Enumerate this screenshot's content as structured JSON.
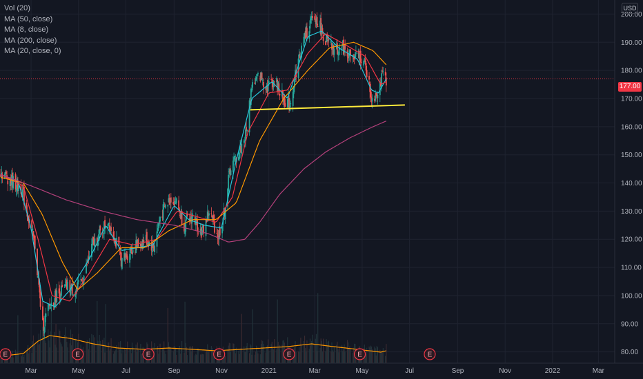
{
  "legend": {
    "items": [
      "Vol (20)",
      "MA (50, close)",
      "MA (8, close)",
      "MA (200, close)",
      "MA (20, close, 0)"
    ]
  },
  "currency": "USD",
  "last_price": "177.00",
  "colors": {
    "background": "#131722",
    "grid": "#1f2330",
    "axis_text": "#b2b5be",
    "up_candle": "#26a69a",
    "down_candle": "#ef5350",
    "ma8": "#26c6da",
    "ma20": "#f23645",
    "ma50": "#ff9800",
    "ma200": "#b3407a",
    "volume_ma": "#ff9800",
    "trendline": "#ffeb3b",
    "earnings_marker": "#f23645"
  },
  "chart_data": {
    "type": "candlestick",
    "x_axis": {
      "tick_labels": [
        "Mar",
        "May",
        "Jul",
        "Sep",
        "Nov",
        "2021",
        "Mar",
        "May",
        "Jul",
        "Sep",
        "Nov",
        "2022",
        "Mar"
      ],
      "tick_dates": [
        "2020-03-01",
        "2020-05-01",
        "2020-07-01",
        "2020-09-01",
        "2020-11-01",
        "2021-01-01",
        "2021-03-01",
        "2021-05-01",
        "2021-07-01",
        "2021-09-01",
        "2021-11-01",
        "2022-01-01",
        "2022-03-01"
      ]
    },
    "y_axis": {
      "tick_labels": [
        "80.00",
        "90.00",
        "100.00",
        "110.00",
        "120.00",
        "130.00",
        "140.00",
        "150.00",
        "160.00",
        "170.00",
        "180.00",
        "190.00",
        "200.00"
      ],
      "tick_values": [
        80,
        90,
        100,
        110,
        120,
        130,
        140,
        150,
        160,
        170,
        180,
        190,
        200
      ],
      "range": [
        76,
        205
      ]
    },
    "x_range": [
      "2020-01-21",
      "2022-03-22"
    ],
    "close_anchors": [
      [
        "2020-01-22",
        144
      ],
      [
        "2020-02-04",
        141
      ],
      [
        "2020-02-18",
        138
      ],
      [
        "2020-02-27",
        127
      ],
      [
        "2020-03-06",
        118
      ],
      [
        "2020-03-12",
        100
      ],
      [
        "2020-03-16",
        89
      ],
      [
        "2020-03-23",
        95
      ],
      [
        "2020-04-02",
        100
      ],
      [
        "2020-04-16",
        103
      ],
      [
        "2020-04-29",
        102
      ],
      [
        "2020-05-08",
        107
      ],
      [
        "2020-05-19",
        118
      ],
      [
        "2020-05-29",
        122
      ],
      [
        "2020-06-08",
        127
      ],
      [
        "2020-06-16",
        121
      ],
      [
        "2020-06-26",
        112
      ],
      [
        "2020-07-06",
        116
      ],
      [
        "2020-07-16",
        118
      ],
      [
        "2020-07-27",
        120
      ],
      [
        "2020-08-06",
        117
      ],
      [
        "2020-08-14",
        128
      ],
      [
        "2020-08-28",
        135
      ],
      [
        "2020-09-04",
        133
      ],
      [
        "2020-09-14",
        125
      ],
      [
        "2020-09-25",
        128
      ],
      [
        "2020-10-07",
        122
      ],
      [
        "2020-10-16",
        130
      ],
      [
        "2020-10-28",
        121
      ],
      [
        "2020-11-05",
        130
      ],
      [
        "2020-11-12",
        145
      ],
      [
        "2020-11-24",
        151
      ],
      [
        "2020-12-03",
        158
      ],
      [
        "2020-12-10",
        175
      ],
      [
        "2020-12-21",
        178
      ],
      [
        "2020-12-30",
        174
      ],
      [
        "2021-01-08",
        177
      ],
      [
        "2021-01-19",
        170
      ],
      [
        "2021-01-28",
        168
      ],
      [
        "2021-02-05",
        180
      ],
      [
        "2021-02-16",
        192
      ],
      [
        "2021-02-24",
        197
      ],
      [
        "2021-03-04",
        198
      ],
      [
        "2021-03-16",
        190
      ],
      [
        "2021-03-26",
        187
      ],
      [
        "2021-04-07",
        188
      ],
      [
        "2021-04-20",
        184
      ],
      [
        "2021-04-29",
        185
      ],
      [
        "2021-05-06",
        181
      ],
      [
        "2021-05-13",
        170
      ],
      [
        "2021-05-19",
        172
      ],
      [
        "2021-05-28",
        178
      ],
      [
        "2021-06-01",
        177
      ]
    ],
    "moving_averages": [
      {
        "name": "MA (8, close)",
        "color": "#26c6da",
        "anchors": [
          [
            "2020-01-22",
            143
          ],
          [
            "2020-02-14",
            140
          ],
          [
            "2020-03-01",
            124
          ],
          [
            "2020-03-16",
            98
          ],
          [
            "2020-04-01",
            96
          ],
          [
            "2020-04-20",
            102
          ],
          [
            "2020-05-15",
            113
          ],
          [
            "2020-06-05",
            125
          ],
          [
            "2020-06-25",
            116
          ],
          [
            "2020-07-15",
            117
          ],
          [
            "2020-08-05",
            118
          ],
          [
            "2020-09-01",
            132
          ],
          [
            "2020-09-20",
            127
          ],
          [
            "2020-10-10",
            125
          ],
          [
            "2020-11-01",
            124
          ],
          [
            "2020-11-20",
            148
          ],
          [
            "2020-12-10",
            170
          ],
          [
            "2021-01-05",
            176
          ],
          [
            "2021-01-25",
            170
          ],
          [
            "2021-02-20",
            192
          ],
          [
            "2021-03-10",
            194
          ],
          [
            "2021-04-01",
            188
          ],
          [
            "2021-04-25",
            184
          ],
          [
            "2021-05-13",
            173
          ],
          [
            "2021-05-22",
            172
          ],
          [
            "2021-06-01",
            177
          ]
        ]
      },
      {
        "name": "MA (20, close, 0)",
        "color": "#f23645",
        "anchors": [
          [
            "2020-01-22",
            143
          ],
          [
            "2020-02-20",
            139
          ],
          [
            "2020-03-10",
            120
          ],
          [
            "2020-03-28",
            100
          ],
          [
            "2020-04-20",
            98
          ],
          [
            "2020-05-15",
            108
          ],
          [
            "2020-06-10",
            120
          ],
          [
            "2020-07-10",
            118
          ],
          [
            "2020-08-10",
            120
          ],
          [
            "2020-09-05",
            130
          ],
          [
            "2020-10-01",
            128
          ],
          [
            "2020-10-25",
            126
          ],
          [
            "2020-11-15",
            135
          ],
          [
            "2020-12-05",
            158
          ],
          [
            "2021-01-01",
            172
          ],
          [
            "2021-01-25",
            173
          ],
          [
            "2021-02-20",
            186
          ],
          [
            "2021-03-15",
            193
          ],
          [
            "2021-04-10",
            189
          ],
          [
            "2021-05-05",
            185
          ],
          [
            "2021-05-25",
            175
          ],
          [
            "2021-06-01",
            176
          ]
        ]
      },
      {
        "name": "MA (50, close)",
        "color": "#ff9800",
        "anchors": [
          [
            "2020-01-22",
            142
          ],
          [
            "2020-02-20",
            140
          ],
          [
            "2020-03-15",
            129
          ],
          [
            "2020-04-10",
            112
          ],
          [
            "2020-04-30",
            102
          ],
          [
            "2020-05-25",
            108
          ],
          [
            "2020-06-25",
            117
          ],
          [
            "2020-07-25",
            117
          ],
          [
            "2020-08-25",
            123
          ],
          [
            "2020-09-25",
            127
          ],
          [
            "2020-10-25",
            127
          ],
          [
            "2020-11-20",
            133
          ],
          [
            "2020-12-20",
            155
          ],
          [
            "2021-01-20",
            170
          ],
          [
            "2021-02-20",
            180
          ],
          [
            "2021-03-20",
            188
          ],
          [
            "2021-04-20",
            190
          ],
          [
            "2021-05-15",
            187
          ],
          [
            "2021-06-01",
            182
          ]
        ]
      },
      {
        "name": "MA (200, close)",
        "color": "#b3407a",
        "anchors": [
          [
            "2020-01-22",
            143
          ],
          [
            "2020-03-01",
            139
          ],
          [
            "2020-04-15",
            134
          ],
          [
            "2020-06-01",
            130
          ],
          [
            "2020-07-15",
            127
          ],
          [
            "2020-09-01",
            125
          ],
          [
            "2020-10-15",
            122
          ],
          [
            "2020-11-10",
            119
          ],
          [
            "2020-12-01",
            120
          ],
          [
            "2020-12-20",
            126
          ],
          [
            "2021-01-15",
            136
          ],
          [
            "2021-02-15",
            145
          ],
          [
            "2021-03-15",
            151
          ],
          [
            "2021-04-15",
            156
          ],
          [
            "2021-05-15",
            160
          ],
          [
            "2021-06-01",
            162
          ]
        ]
      }
    ],
    "volume_ma_levels": [
      [
        "2020-01-22",
        0.25
      ],
      [
        "2020-02-20",
        0.35
      ],
      [
        "2020-03-10",
        0.8
      ],
      [
        "2020-03-25",
        1.0
      ],
      [
        "2020-04-20",
        0.9
      ],
      [
        "2020-05-20",
        0.7
      ],
      [
        "2020-06-20",
        0.55
      ],
      [
        "2020-07-25",
        0.5
      ],
      [
        "2020-08-25",
        0.55
      ],
      [
        "2020-09-25",
        0.5
      ],
      [
        "2020-10-25",
        0.45
      ],
      [
        "2020-11-25",
        0.5
      ],
      [
        "2020-12-25",
        0.55
      ],
      [
        "2021-01-25",
        0.6
      ],
      [
        "2021-02-25",
        0.7
      ],
      [
        "2021-03-25",
        0.6
      ],
      [
        "2021-04-25",
        0.5
      ],
      [
        "2021-05-25",
        0.4
      ],
      [
        "2021-06-01",
        0.45
      ]
    ],
    "last_price_value": 177,
    "trendline": {
      "start": [
        "2020-12-08",
        166
      ],
      "end": [
        "2021-06-25",
        167.7
      ]
    },
    "earnings_markers": {
      "label": "E",
      "dates": [
        "2020-01-28",
        "2020-04-30",
        "2020-07-30",
        "2020-10-29",
        "2021-01-27",
        "2021-04-28",
        "2021-07-27"
      ]
    }
  }
}
